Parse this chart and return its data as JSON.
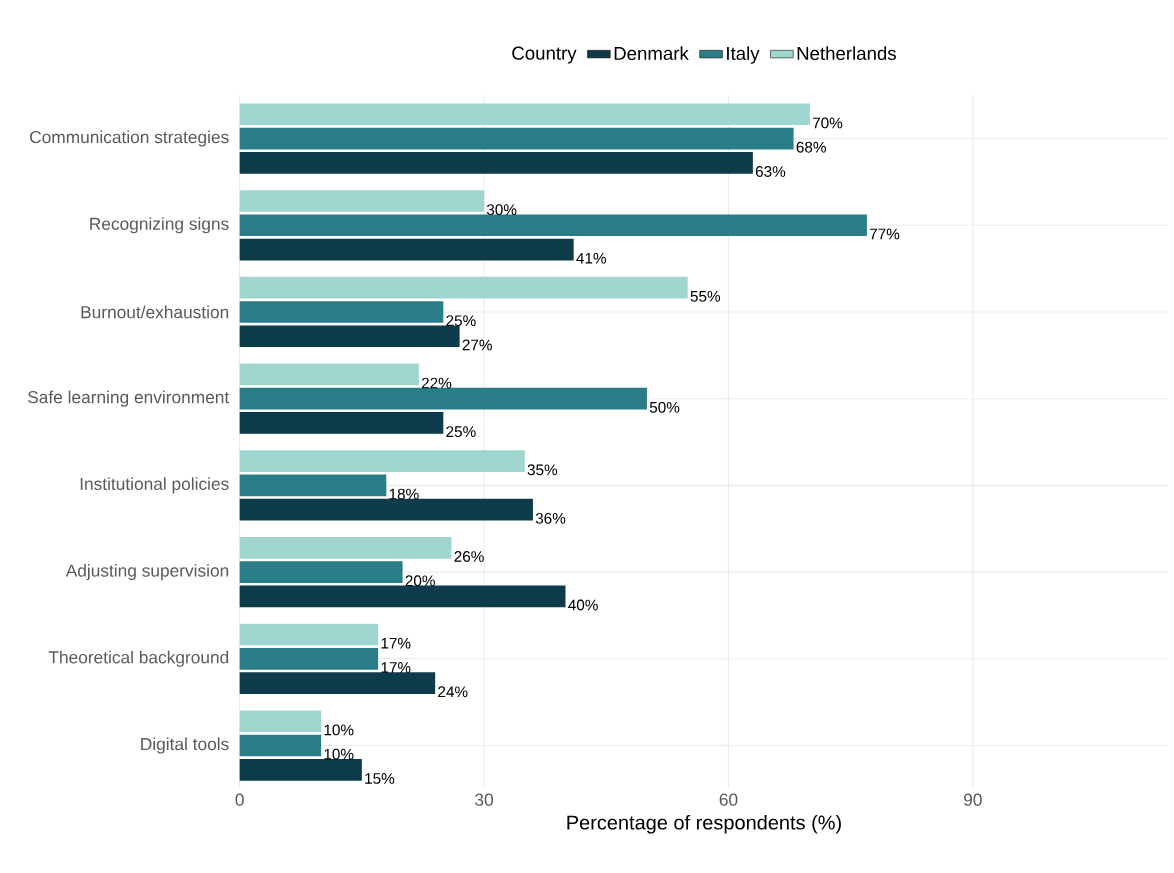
{
  "chart_data": {
    "type": "bar",
    "orientation": "horizontal",
    "xlabel": "Percentage of respondents (%)",
    "legend_title": "Country",
    "legend": "top",
    "grid": true,
    "categories": [
      "Communication strategies",
      "Recognizing signs",
      "Burnout/exhaustion",
      "Safe learning environment",
      "Institutional policies",
      "Adjusting supervision",
      "Theoretical background",
      "Digital tools"
    ],
    "xlim": [
      0,
      114
    ],
    "xticks": [
      0,
      30,
      60,
      90
    ],
    "series": [
      {
        "name": "Denmark",
        "color": "#0e3b4a",
        "values": [
          63,
          41,
          27,
          25,
          36,
          40,
          24,
          15
        ],
        "value_labels": [
          "63%",
          "41%",
          "27%",
          "25%",
          "36%",
          "40%",
          "24%",
          "15%"
        ]
      },
      {
        "name": "Italy",
        "color": "#2a7d86",
        "values": [
          68,
          77,
          25,
          50,
          18,
          20,
          17,
          10
        ],
        "value_labels": [
          "68%",
          "77%",
          "25%",
          "50%",
          "18%",
          "20%",
          "17%",
          "10%"
        ]
      },
      {
        "name": "Netherlands",
        "color": "#9fd5cf",
        "values": [
          70,
          30,
          55,
          22,
          35,
          26,
          17,
          10
        ],
        "value_labels": [
          "70%",
          "30%",
          "55%",
          "22%",
          "35%",
          "26%",
          "17%",
          "10%"
        ]
      }
    ]
  }
}
